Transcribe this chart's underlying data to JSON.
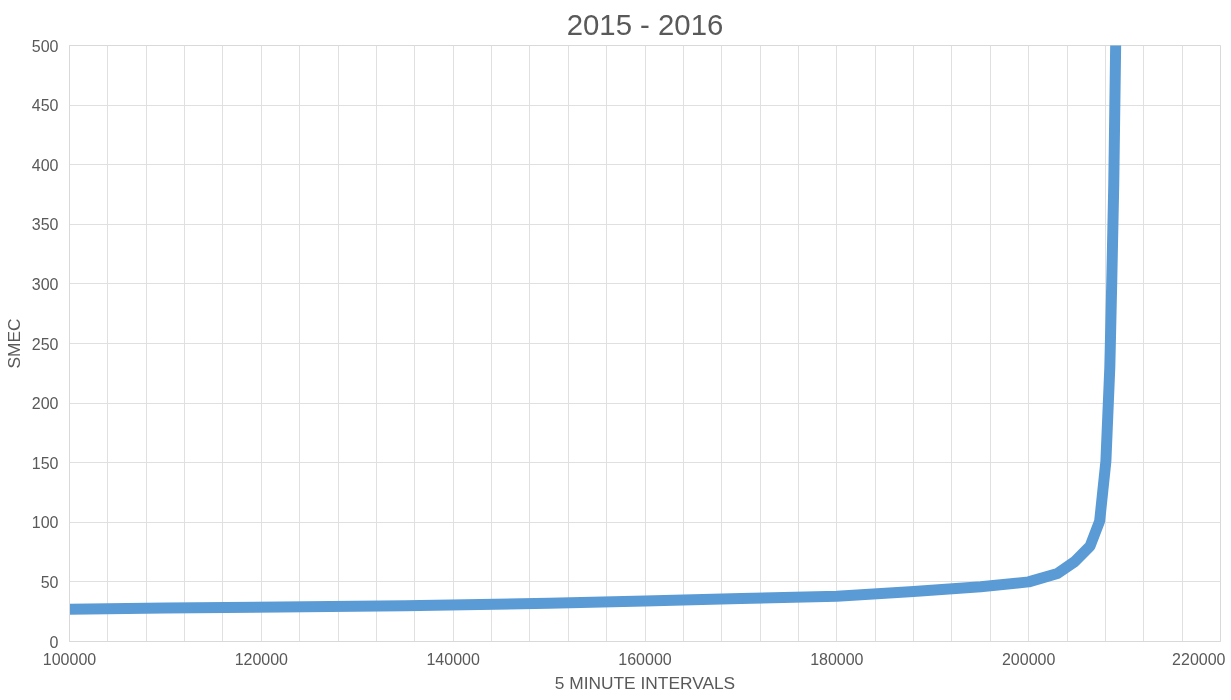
{
  "chart_data": {
    "type": "line",
    "title": "2015 - 2016",
    "xlabel": "5 MINUTE INTERVALS",
    "ylabel": "SMEC",
    "x": [
      100000,
      110000,
      122000,
      135000,
      150000,
      160000,
      170000,
      180000,
      188000,
      195000,
      200000,
      203000,
      204800,
      206400,
      207400,
      208050,
      208460,
      208660,
      208870,
      209070
    ],
    "series": [
      {
        "color": "#5b9bd5",
        "values": [
          27,
          28,
          29,
          30,
          32,
          34,
          36,
          38,
          42,
          46,
          50,
          57,
          67,
          80,
          101,
          151,
          230,
          301,
          383,
          500
        ]
      }
    ],
    "xlim": [
      100000,
      220000
    ],
    "xticks": [
      100000,
      {
        "value": 104000,
        "label": null
      },
      {
        "value": 108000,
        "label": null
      },
      {
        "value": 112000,
        "label": null
      },
      {
        "value": 116000,
        "label": null
      },
      120000,
      {
        "value": 124000,
        "label": null
      },
      {
        "value": 128000,
        "label": null
      },
      {
        "value": 132000,
        "label": null
      },
      {
        "value": 136000,
        "label": null
      },
      140000,
      {
        "value": 144000,
        "label": null
      },
      {
        "value": 148000,
        "label": null
      },
      {
        "value": 152000,
        "label": null
      },
      {
        "value": 156000,
        "label": null
      },
      160000,
      {
        "value": 164000,
        "label": null
      },
      {
        "value": 168000,
        "label": null
      },
      {
        "value": 172000,
        "label": null
      },
      {
        "value": 176000,
        "label": null
      },
      180000,
      {
        "value": 184000,
        "label": null
      },
      {
        "value": 188000,
        "label": null
      },
      {
        "value": 192000,
        "label": null
      },
      {
        "value": 196000,
        "label": null
      },
      200000,
      {
        "value": 204000,
        "label": null
      },
      {
        "value": 208000,
        "label": null
      },
      {
        "value": 212000,
        "label": null
      },
      {
        "value": 216000,
        "label": null
      },
      220000
    ],
    "ylim": [
      0,
      500
    ],
    "yticks": [
      0,
      50,
      100,
      150,
      200,
      250,
      300,
      350,
      400,
      450,
      500
    ],
    "grid": true,
    "marker": "none",
    "line_style": "solid"
  }
}
